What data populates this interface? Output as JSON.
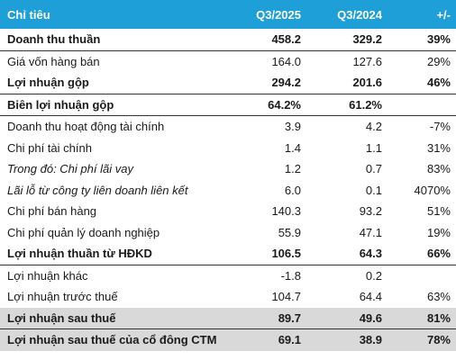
{
  "header": {
    "label": "Chỉ tiêu",
    "q2025": "Q3/2025",
    "q2024": "Q3/2024",
    "change": "+/-"
  },
  "rows": [
    {
      "label": "Doanh thu thuần",
      "q2025": "458.2",
      "q2024": "329.2",
      "change": "39%"
    },
    {
      "label": "Giá vốn hàng bán",
      "q2025": "164.0",
      "q2024": "127.6",
      "change": "29%"
    },
    {
      "label": "Lợi nhuận gộp",
      "q2025": "294.2",
      "q2024": "201.6",
      "change": "46%"
    },
    {
      "label": "Biên lợi nhuận gộp",
      "q2025": "64.2%",
      "q2024": "61.2%",
      "change": ""
    },
    {
      "label": "Doanh thu hoạt động tài chính",
      "q2025": "3.9",
      "q2024": "4.2",
      "change": "-7%"
    },
    {
      "label": "Chi phí tài chính",
      "q2025": "1.4",
      "q2024": "1.1",
      "change": "31%"
    },
    {
      "label": "Trong đó: Chi phí lãi vay",
      "q2025": "1.2",
      "q2024": "0.7",
      "change": "83%"
    },
    {
      "label": "Lãi lỗ từ công ty liên doanh liên kết",
      "q2025": "6.0",
      "q2024": "0.1",
      "change": "4070%"
    },
    {
      "label": "Chi phí bán hàng",
      "q2025": "140.3",
      "q2024": "93.2",
      "change": "51%"
    },
    {
      "label": "Chi phí quản lý doanh nghiệp",
      "q2025": "55.9",
      "q2024": "47.1",
      "change": "19%"
    },
    {
      "label": "Lợi nhuận thuần từ HĐKD",
      "q2025": "106.5",
      "q2024": "64.3",
      "change": "66%"
    },
    {
      "label": "Lợi nhuận khác",
      "q2025": "-1.8",
      "q2024": "0.2",
      "change": ""
    },
    {
      "label": "Lợi nhuận trước thuế",
      "q2025": "104.7",
      "q2024": "64.4",
      "change": "63%"
    },
    {
      "label": "Lợi nhuận sau thuế",
      "q2025": "89.7",
      "q2024": "49.6",
      "change": "81%"
    },
    {
      "label": "Lợi nhuận sau thuế của cổ đông CTM",
      "q2025": "69.1",
      "q2024": "38.9",
      "change": "78%"
    }
  ],
  "colors": {
    "header_bg": "#1e9fd8",
    "header_text": "#ffffff",
    "shaded_row": "#d9d9d9"
  }
}
